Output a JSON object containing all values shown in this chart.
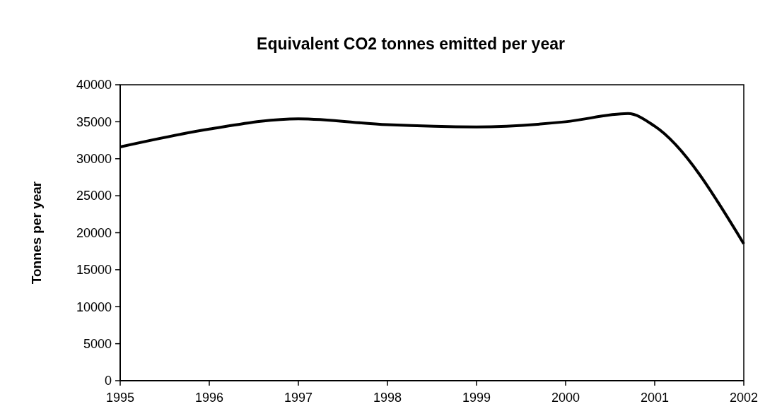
{
  "chart_data": {
    "type": "line",
    "title": "Equivalent CO2 tonnes emitted per year",
    "ylabel": "Tonnes per year",
    "x": [
      1995,
      1996,
      1997,
      1998,
      1999,
      2000,
      2000.7,
      2001,
      2002
    ],
    "series": [
      {
        "color": "#000000",
        "values": [
          31600,
          34000,
          35400,
          34600,
          34300,
          35000,
          36100,
          34400,
          18500
        ]
      }
    ],
    "xlim": [
      1995,
      2002
    ],
    "xticks": [
      1995,
      1996,
      1997,
      1998,
      1999,
      2000,
      2001,
      2002
    ],
    "ylim": [
      0,
      40000
    ],
    "yticks": [
      0,
      5000,
      10000,
      15000,
      20000,
      25000,
      30000,
      35000,
      40000
    ],
    "grid": false,
    "marker": "none",
    "line_style": "solid"
  }
}
